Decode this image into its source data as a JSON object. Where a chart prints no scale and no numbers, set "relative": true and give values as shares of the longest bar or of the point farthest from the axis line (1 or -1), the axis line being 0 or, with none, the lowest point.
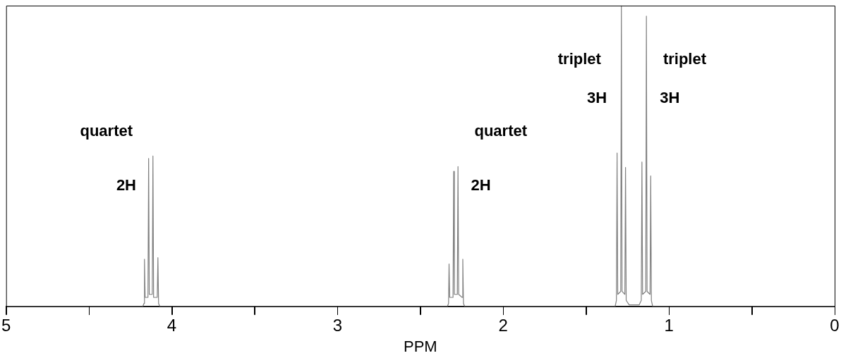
{
  "chart_data": {
    "type": "line",
    "relative": true,
    "xlabel": "PPM",
    "xlim": [
      5,
      0
    ],
    "xticks": [
      5,
      {
        "value": 4.5,
        "label": null
      },
      4,
      {
        "value": 3.5,
        "label": null
      },
      3,
      {
        "value": 2.5,
        "label": null
      },
      2,
      {
        "value": 1.5,
        "label": null
      },
      1,
      {
        "value": 0.5,
        "label": null
      },
      0
    ],
    "grid": false,
    "legend": false,
    "marker": "none",
    "line_style": "solid",
    "series": [
      {
        "color": "#808080",
        "x": [
          5,
          4.175,
          4.168,
          4.165,
          4.161,
          4.144,
          4.14,
          4.136,
          4.118,
          4.114,
          4.11,
          4.088,
          4.084,
          4.08,
          4.073,
          2.337,
          2.33,
          2.327,
          2.323,
          2.303,
          2.299,
          2.295,
          2.277,
          2.273,
          2.269,
          2.248,
          2.244,
          2.24,
          2.233,
          1.325,
          1.317,
          1.313,
          1.309,
          1.291,
          1.287,
          1.283,
          1.266,
          1.262,
          1.258,
          1.24,
          1.18,
          1.167,
          1.163,
          1.159,
          1.14,
          1.136,
          1.132,
          1.114,
          1.11,
          1.106,
          1.098,
          0
        ],
        "values": [
          0,
          0,
          0.01,
          0.157,
          0.03,
          0.03,
          0.492,
          0.04,
          0.04,
          0.5,
          0.03,
          0.03,
          0.162,
          0.01,
          0,
          0,
          0.01,
          0.141,
          0.03,
          0.03,
          0.449,
          0.04,
          0.04,
          0.465,
          0.04,
          0.03,
          0.157,
          0.01,
          0,
          0,
          0.02,
          0.51,
          0.04,
          0.05,
          1,
          0.05,
          0.04,
          0.462,
          0.02,
          0.005,
          0.005,
          0.02,
          0.48,
          0.04,
          0.05,
          0.965,
          0.05,
          0.04,
          0.434,
          0.02,
          0,
          0
        ]
      }
    ],
    "annotations": [
      "quartet",
      "2H",
      "quartet",
      "2H",
      "triplet",
      "3H",
      "triplet",
      "3H"
    ]
  }
}
